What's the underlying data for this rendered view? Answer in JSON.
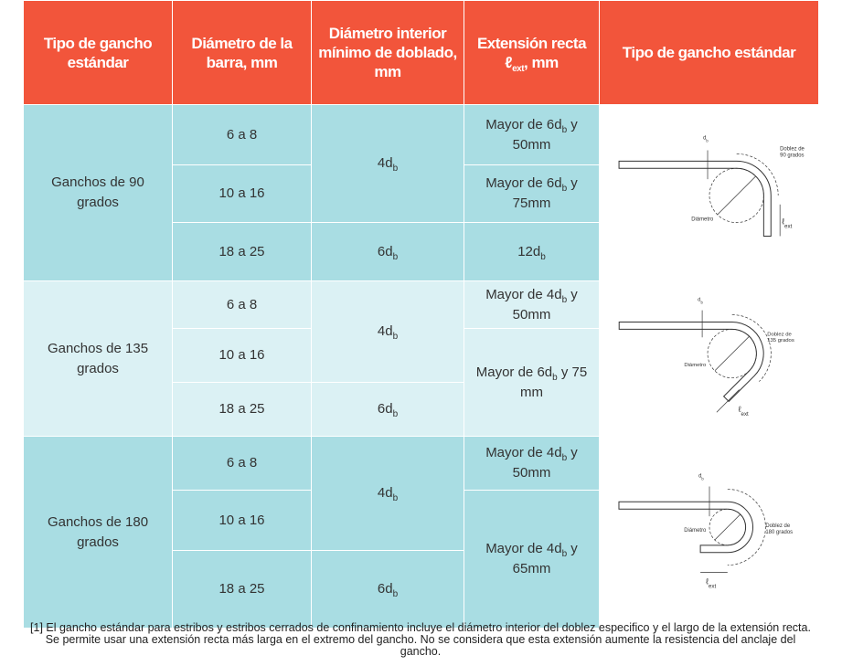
{
  "header": [
    [
      "Tipo de gancho estándar"
    ],
    [
      "Diámetro de la barra, mm"
    ],
    [
      "Diámetro interior mínimo de doblado, mm"
    ],
    [
      "Extensión recta ",
      "ℓ",
      {
        "sub": "ext"
      },
      ", mm"
    ],
    [
      "Tipo de gancho estándar"
    ]
  ],
  "groups": [
    {
      "hook": "Ganchos de 90 grados",
      "bars": [
        "6 a 8",
        "10 a 16",
        "18 a 25"
      ],
      "inner": [
        [
          "4d",
          {
            "sub": "b"
          }
        ],
        [
          "6d",
          {
            "sub": "b"
          }
        ]
      ],
      "ext": [
        [
          "Mayor de 6d",
          {
            "sub": "b"
          },
          " y 50mm"
        ],
        [
          "Mayor de 6d",
          {
            "sub": "b"
          },
          " y 75mm"
        ],
        [
          "12d",
          {
            "sub": "b"
          }
        ]
      ],
      "figure": {
        "db": [
          "d",
          {
            "sub": "b"
          }
        ],
        "bend": [
          "Doblez de",
          "90 grados"
        ],
        "diameter": "Diámetro",
        "ext": [
          "ℓ",
          {
            "sub": "ext"
          }
        ]
      }
    },
    {
      "hook": "Ganchos de 135 grados",
      "bars": [
        "6 a 8",
        "10 a 16",
        "18 a 25"
      ],
      "inner": [
        [
          "4d",
          {
            "sub": "b"
          }
        ],
        [
          "6d",
          {
            "sub": "b"
          }
        ]
      ],
      "ext": [
        [
          "Mayor de 4d",
          {
            "sub": "b"
          },
          " y 50mm"
        ],
        [
          "Mayor de 6d",
          {
            "sub": "b"
          },
          " y 75 mm"
        ]
      ],
      "figure": {
        "db": [
          "d",
          {
            "sub": "b"
          }
        ],
        "bend": [
          "Doblez de",
          "135 grados"
        ],
        "diameter": "Diámetro",
        "ext": [
          "ℓ",
          {
            "sub": "ext"
          }
        ]
      }
    },
    {
      "hook": "Ganchos de 180 grados",
      "bars": [
        "6 a 8",
        "10 a 16",
        "18 a 25"
      ],
      "inner": [
        [
          "4d",
          {
            "sub": "b"
          }
        ],
        [
          "6d",
          {
            "sub": "b"
          }
        ]
      ],
      "ext": [
        [
          "Mayor de 4d",
          {
            "sub": "b"
          },
          " y 50mm"
        ],
        [
          "Mayor de 4d",
          {
            "sub": "b"
          },
          " y 65mm"
        ]
      ],
      "figure": {
        "db": [
          "d",
          {
            "sub": "b"
          }
        ],
        "bend": [
          "Doblez de",
          "180 grados"
        ],
        "diameter": "Diámetro",
        "ext": [
          "ℓ",
          {
            "sub": "ext"
          }
        ]
      }
    }
  ],
  "footnote": "[1] El gancho estándar para estribos y estribos cerrados de confinamiento incluye el diámetro interior del doblez especifico y el largo de la extensión recta. Se permite usar una extensión recta más larga en el extremo del gancho. No se considera que esta extensión aumente la resistencia del anclaje del gancho."
}
